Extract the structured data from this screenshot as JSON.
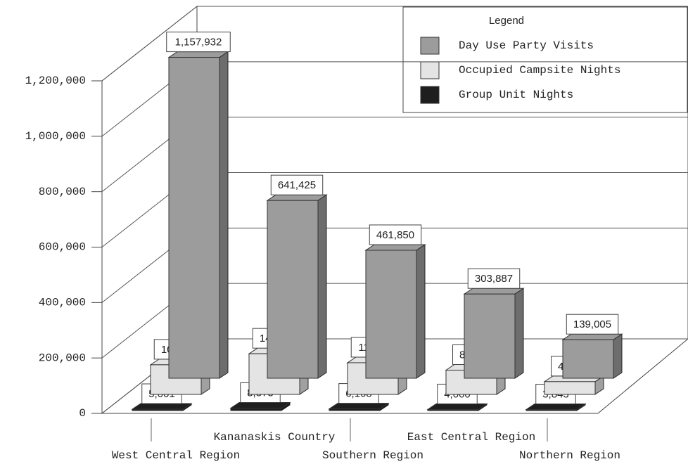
{
  "chart_data": {
    "type": "bar3d",
    "legend_title": "Legend",
    "legend": "top-right",
    "categories": [
      "West Central Region",
      "Kananaskis Country",
      "Southern Region",
      "East Central Region",
      "Northern Region"
    ],
    "series": [
      {
        "name": "Day Use Party Visits",
        "color": "#9c9c9c",
        "values": [
          1157932,
          641425,
          461850,
          303887,
          139005
        ],
        "value_labels": [
          "1,157,932",
          "641,425",
          "461,850",
          "303,887",
          "139,005"
        ]
      },
      {
        "name": "Occupied Campsite Nights",
        "color": "#e4e4e4",
        "values": [
          106858,
          146709,
          114301,
          87563,
          46128
        ],
        "value_labels": [
          "106,858",
          "146,709",
          "114,301",
          "87,563",
          "46,128"
        ]
      },
      {
        "name": "Group Unit Nights",
        "color": "#1e1e1e",
        "values": [
          5001,
          8878,
          6108,
          4000,
          3843
        ],
        "value_labels": [
          "5,001",
          "8,878",
          "6,108",
          "4,000",
          "3,843"
        ]
      }
    ],
    "ylim": [
      0,
      1200000
    ],
    "yticks": [
      0,
      {
        "value": 200000,
        "label": "200,000"
      },
      {
        "value": 400000,
        "label": "400,000"
      },
      {
        "value": 600000,
        "label": "600,000"
      },
      {
        "value": 800000,
        "label": "800,000"
      },
      {
        "value": 1000000,
        "label": "1,000,000"
      },
      {
        "value": 1200000,
        "label": "1,200,000"
      }
    ],
    "grid": true
  }
}
